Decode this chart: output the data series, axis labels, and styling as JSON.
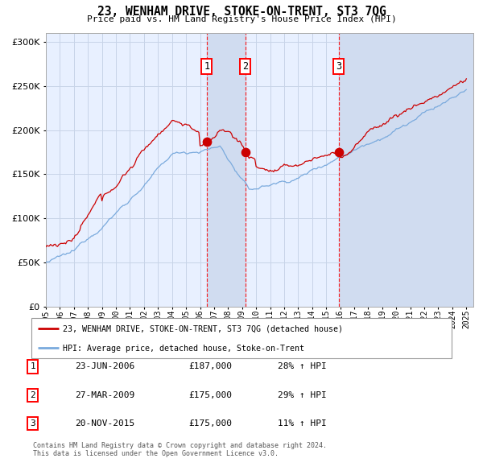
{
  "title": "23, WENHAM DRIVE, STOKE-ON-TRENT, ST3 7QG",
  "subtitle": "Price paid vs. HM Land Registry's House Price Index (HPI)",
  "legend_red": "23, WENHAM DRIVE, STOKE-ON-TRENT, ST3 7QG (detached house)",
  "legend_blue": "HPI: Average price, detached house, Stoke-on-Trent",
  "footer1": "Contains HM Land Registry data © Crown copyright and database right 2024.",
  "footer2": "This data is licensed under the Open Government Licence v3.0.",
  "transactions": [
    {
      "num": 1,
      "date": "23-JUN-2006",
      "price": 187000,
      "hpi_pct": "28% ↑ HPI"
    },
    {
      "num": 2,
      "date": "27-MAR-2009",
      "price": 175000,
      "hpi_pct": "29% ↑ HPI"
    },
    {
      "num": 3,
      "date": "20-NOV-2015",
      "price": 175000,
      "hpi_pct": "11% ↑ HPI"
    }
  ],
  "transaction_dates_decimal": [
    2006.478,
    2009.231,
    2015.894
  ],
  "ylim": [
    0,
    310000
  ],
  "xlim_start": 1995.0,
  "xlim_end": 2025.5,
  "background_color": "#ffffff",
  "plot_bg_color": "#e8f0ff",
  "grid_color": "#c8d4e8",
  "red_color": "#cc0000",
  "blue_color": "#7aaadd",
  "highlight_color": "#d0dcf0"
}
